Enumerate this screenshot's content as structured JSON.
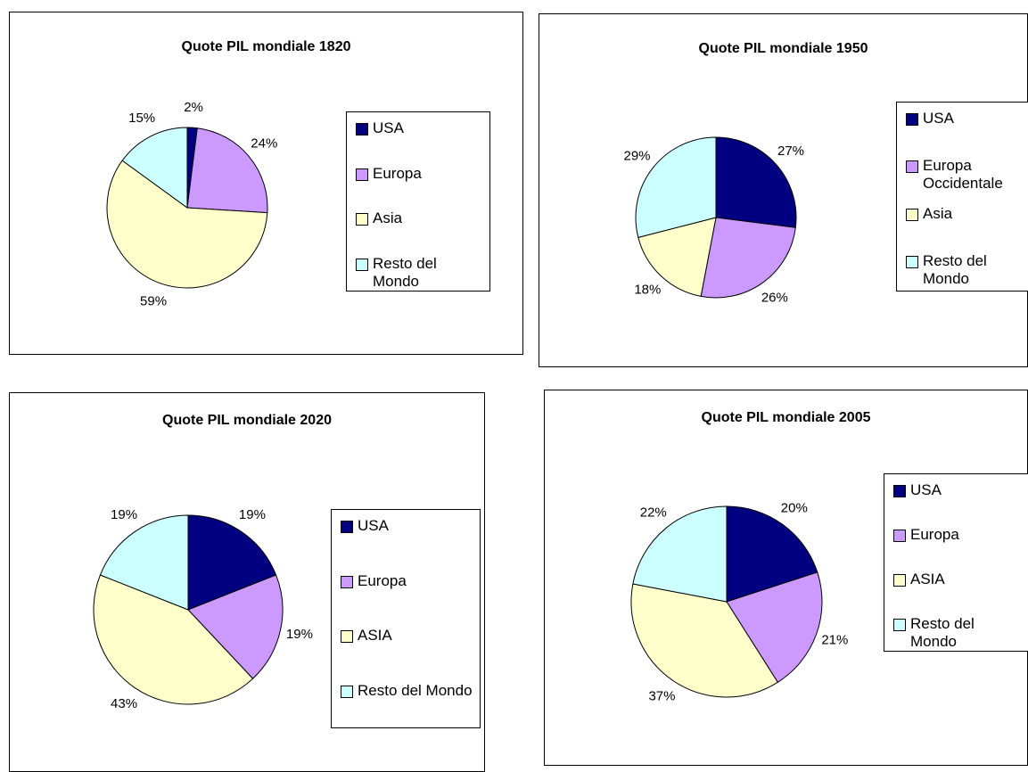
{
  "chart_data": [
    {
      "type": "pie",
      "title": "Quote PIL mondiale 1820",
      "categories": [
        "USA",
        "Europa",
        "Asia",
        "Resto del Mondo"
      ],
      "values": [
        2,
        24,
        59,
        15
      ],
      "value_labels": [
        "2%",
        "24%",
        "59%",
        "15%"
      ],
      "colors": [
        "#000080",
        "#cc99ff",
        "#ffffcc",
        "#ccffff"
      ]
    },
    {
      "type": "pie",
      "title": "Quote PIL mondiale 1950",
      "categories": [
        "USA",
        "Europa Occidentale",
        "Asia",
        "Resto del Mondo"
      ],
      "values": [
        27,
        26,
        18,
        29
      ],
      "value_labels": [
        "27%",
        "26%",
        "18%",
        "29%"
      ],
      "colors": [
        "#000080",
        "#cc99ff",
        "#ffffcc",
        "#ccffff"
      ]
    },
    {
      "type": "pie",
      "title": "Quote PIL mondiale 2020",
      "categories": [
        "USA",
        "Europa",
        "ASIA",
        "Resto del Mondo"
      ],
      "values": [
        19,
        19,
        43,
        19
      ],
      "value_labels": [
        "19%",
        "19%",
        "43%",
        "19%"
      ],
      "colors": [
        "#000080",
        "#cc99ff",
        "#ffffcc",
        "#ccffff"
      ]
    },
    {
      "type": "pie",
      "title": "Quote PIL mondiale 2005",
      "categories": [
        "USA",
        "Europa",
        "ASIA",
        "Resto del Mondo"
      ],
      "values": [
        20,
        21,
        37,
        22
      ],
      "value_labels": [
        "20%",
        "21%",
        "37%",
        "22%"
      ],
      "colors": [
        "#000080",
        "#cc99ff",
        "#ffffcc",
        "#ccffff"
      ]
    }
  ]
}
